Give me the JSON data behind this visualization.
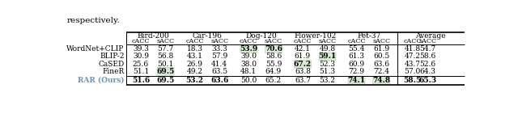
{
  "title_text": "respectively.",
  "headers_top": [
    "Bird-200",
    "Car-196",
    "Dog-120",
    "Flower-102",
    "Pet-37",
    "Average"
  ],
  "methods": [
    "WordNet+CLIP",
    "BLIP-2",
    "CaSED",
    "FineR",
    "RAR (Ours)"
  ],
  "data": {
    "WordNet+CLIP": [
      "39.3",
      "57.7",
      "18.3",
      "33.3",
      "53.9",
      "70.6",
      "42.1",
      "49.8",
      "55.4",
      "61.9",
      "41.8",
      "54.7"
    ],
    "BLIP-2": [
      "30.9",
      "56.8",
      "43.1",
      "57.9",
      "39.0",
      "58.6",
      "61.9",
      "59.1",
      "61.3",
      "60.5",
      "47.2",
      "58.6"
    ],
    "CaSED": [
      "25.6",
      "50.1",
      "26.9",
      "41.4",
      "38.0",
      "55.9",
      "67.2",
      "52.3",
      "60.9",
      "63.6",
      "43.7",
      "52.6"
    ],
    "FineR": [
      "51.1",
      "69.5",
      "49.2",
      "63.5",
      "48.1",
      "64.9",
      "63.8",
      "51.3",
      "72.9",
      "72.4",
      "57.0",
      "64.3"
    ],
    "RAR (Ours)": [
      "51.6",
      "69.5",
      "53.2",
      "63.6",
      "50.0",
      "65.2",
      "63.7",
      "53.2",
      "74.1",
      "74.8",
      "58.5",
      "65.3"
    ]
  },
  "bold_cells": {
    "WordNet+CLIP": [
      4,
      5
    ],
    "BLIP-2": [
      7
    ],
    "CaSED": [
      6
    ],
    "FineR": [
      1
    ],
    "RAR (Ours)": [
      0,
      1,
      2,
      3,
      8,
      9,
      10,
      11
    ]
  },
  "green_cells": {
    "WordNet+CLIP": [
      4,
      5
    ],
    "BLIP-2": [
      7
    ],
    "CaSED": [
      6
    ],
    "FineR": [
      1
    ],
    "RAR (Ours)": [
      8,
      9
    ]
  },
  "rar_color": "#6897bb",
  "green_highlight": "#d6ecd2",
  "bg_color": "#ffffff",
  "title_fontsize": 7.5,
  "header_fontsize": 6.5,
  "data_fontsize": 6.5
}
